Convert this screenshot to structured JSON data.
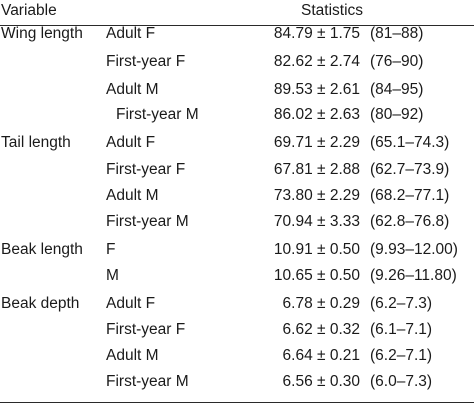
{
  "header": {
    "variable": "Variable",
    "statistics": "Statistics"
  },
  "rows": [
    {
      "variable": "Wing length",
      "group": "Adult F",
      "mean": "84.79 ± 1.75",
      "range": "(81–88)"
    },
    {
      "variable": "",
      "group": "First-year F",
      "mean": "82.62 ± 2.74",
      "range": "(76–90)"
    },
    {
      "variable": "",
      "group": "Adult M",
      "mean": "89.53 ± 2.61",
      "range": "(84–95)"
    },
    {
      "variable": "",
      "group": "First-year M",
      "mean": "86.02 ± 2.63",
      "range": "(80–92)"
    },
    {
      "variable": "Tail length",
      "group": "Adult F",
      "mean": "69.71 ± 2.29",
      "range": "(65.1–74.3)"
    },
    {
      "variable": "",
      "group": "First-year F",
      "mean": "67.81 ± 2.88",
      "range": "(62.7–73.9)"
    },
    {
      "variable": "",
      "group": "Adult M",
      "mean": "73.80 ± 2.29",
      "range": "(68.2–77.1)"
    },
    {
      "variable": "",
      "group": "First-year M",
      "mean": "70.94 ± 3.33",
      "range": "(62.8–76.8)"
    },
    {
      "variable": "Beak length",
      "group": "F",
      "mean": "10.91 ± 0.50",
      "range": "(9.93–12.00)"
    },
    {
      "variable": "",
      "group": "M",
      "mean": "10.65 ± 0.50",
      "range": "(9.26–11.80)"
    },
    {
      "variable": "Beak depth",
      "group": "Adult F",
      "mean": "6.78 ± 0.29",
      "range": "(6.2–7.3)"
    },
    {
      "variable": "",
      "group": "First-year F",
      "mean": "6.62 ± 0.32",
      "range": "(6.1–7.1)"
    },
    {
      "variable": "",
      "group": "Adult M",
      "mean": "6.64 ± 0.21",
      "range": "(6.2–7.1)"
    },
    {
      "variable": "",
      "group": "First-year M",
      "mean": "6.56 ± 0.30",
      "range": "(6.0–7.3)"
    }
  ]
}
